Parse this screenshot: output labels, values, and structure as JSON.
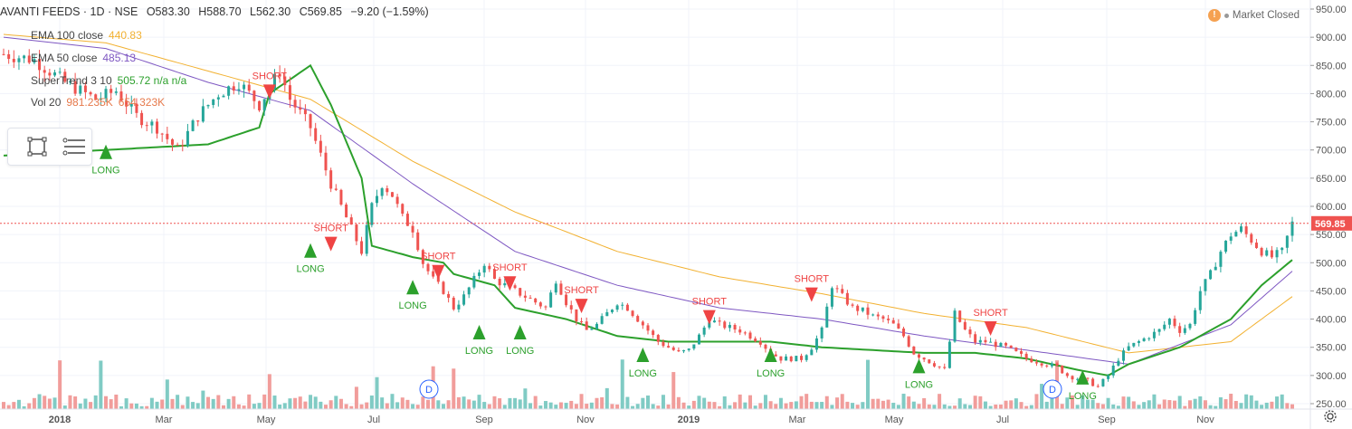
{
  "header": {
    "symbol": "AVANTI FEEDS · 1D · NSE",
    "open": "O583.30",
    "high": "H588.70",
    "low": "L562.30",
    "close": "C569.85",
    "change": "−9.20 (−1.59%)"
  },
  "indicators": {
    "ema100": {
      "label": "EMA 100 close",
      "value": "440.83",
      "color": "#f2b131"
    },
    "ema50": {
      "label": "EMA 50 close",
      "value": "485.13",
      "color": "#7e57c2"
    },
    "supertrend": {
      "label": "SuperTrend 3 10",
      "value": "505.72 n/a n/a",
      "color": "#2ca02c"
    },
    "volume": {
      "label": "Vol 20",
      "value1": "981.235K",
      "value2": "654.323K",
      "color": "#e6794b"
    }
  },
  "market_status": "Market Closed",
  "price_label": "569.85",
  "chart_data": {
    "type": "candlestick",
    "symbol": "AVANTI FEEDS",
    "interval": "1D",
    "exchange": "NSE",
    "ylim": [
      240,
      950
    ],
    "y_ticks": [
      "950.00",
      "900.00",
      "850.00",
      "800.00",
      "750.00",
      "700.00",
      "650.00",
      "600.00",
      "550.00",
      "500.00",
      "450.00",
      "400.00",
      "350.00",
      "300.00",
      "250.00"
    ],
    "x_ticks": [
      "2018",
      "Mar",
      "May",
      "Jul",
      "Sep",
      "Nov",
      "2019",
      "Mar",
      "May",
      "Jul",
      "Sep",
      "Nov"
    ],
    "last_price": 569.85,
    "price_path": [
      [
        0,
        870
      ],
      [
        6,
        860
      ],
      [
        12,
        820
      ],
      [
        18,
        790
      ],
      [
        22,
        805
      ],
      [
        26,
        760
      ],
      [
        30,
        740
      ],
      [
        34,
        700
      ],
      [
        38,
        760
      ],
      [
        42,
        800
      ],
      [
        46,
        820
      ],
      [
        50,
        780
      ],
      [
        54,
        840
      ],
      [
        56,
        790
      ],
      [
        60,
        740
      ],
      [
        62,
        690
      ],
      [
        64,
        640
      ],
      [
        66,
        600
      ],
      [
        68,
        560
      ],
      [
        70,
        520
      ],
      [
        72,
        600
      ],
      [
        74,
        640
      ],
      [
        76,
        620
      ],
      [
        78,
        580
      ],
      [
        80,
        560
      ],
      [
        82,
        500
      ],
      [
        84,
        470
      ],
      [
        86,
        450
      ],
      [
        88,
        420
      ],
      [
        90,
        440
      ],
      [
        92,
        470
      ],
      [
        94,
        500
      ],
      [
        96,
        470
      ],
      [
        98,
        460
      ],
      [
        100,
        450
      ],
      [
        102,
        440
      ],
      [
        104,
        430
      ],
      [
        106,
        420
      ],
      [
        108,
        470
      ],
      [
        110,
        430
      ],
      [
        112,
        400
      ],
      [
        114,
        380
      ],
      [
        116,
        390
      ],
      [
        118,
        410
      ],
      [
        120,
        430
      ],
      [
        122,
        420
      ],
      [
        124,
        400
      ],
      [
        126,
        380
      ],
      [
        128,
        360
      ],
      [
        130,
        350
      ],
      [
        132,
        340
      ],
      [
        134,
        345
      ],
      [
        136,
        370
      ],
      [
        138,
        400
      ],
      [
        140,
        390
      ],
      [
        142,
        385
      ],
      [
        144,
        380
      ],
      [
        146,
        370
      ],
      [
        148,
        360
      ],
      [
        150,
        340
      ],
      [
        152,
        330
      ],
      [
        154,
        330
      ],
      [
        156,
        330
      ],
      [
        158,
        350
      ],
      [
        160,
        380
      ],
      [
        162,
        460
      ],
      [
        164,
        440
      ],
      [
        166,
        420
      ],
      [
        168,
        415
      ],
      [
        170,
        405
      ],
      [
        172,
        400
      ],
      [
        174,
        390
      ],
      [
        176,
        370
      ],
      [
        178,
        340
      ],
      [
        180,
        330
      ],
      [
        182,
        320
      ],
      [
        184,
        310
      ],
      [
        186,
        410
      ],
      [
        188,
        380
      ],
      [
        190,
        360
      ],
      [
        192,
        360
      ],
      [
        194,
        355
      ],
      [
        196,
        350
      ],
      [
        198,
        340
      ],
      [
        200,
        330
      ],
      [
        202,
        325
      ],
      [
        204,
        320
      ],
      [
        206,
        315
      ],
      [
        208,
        300
      ],
      [
        210,
        295
      ],
      [
        212,
        290
      ],
      [
        214,
        280
      ],
      [
        216,
        300
      ],
      [
        218,
        330
      ],
      [
        220,
        350
      ],
      [
        222,
        360
      ],
      [
        224,
        370
      ],
      [
        226,
        380
      ],
      [
        228,
        400
      ],
      [
        230,
        380
      ],
      [
        232,
        390
      ],
      [
        234,
        450
      ],
      [
        236,
        480
      ],
      [
        238,
        520
      ],
      [
        240,
        550
      ],
      [
        242,
        560
      ],
      [
        244,
        540
      ],
      [
        246,
        520
      ],
      [
        248,
        510
      ],
      [
        250,
        520
      ],
      [
        252,
        570
      ]
    ],
    "ema100": [
      [
        0,
        905
      ],
      [
        20,
        890
      ],
      [
        40,
        840
      ],
      [
        60,
        790
      ],
      [
        80,
        680
      ],
      [
        100,
        590
      ],
      [
        120,
        520
      ],
      [
        140,
        475
      ],
      [
        160,
        445
      ],
      [
        180,
        410
      ],
      [
        200,
        385
      ],
      [
        220,
        340
      ],
      [
        240,
        360
      ],
      [
        252,
        440
      ]
    ],
    "ema50": [
      [
        0,
        900
      ],
      [
        20,
        880
      ],
      [
        40,
        820
      ],
      [
        60,
        770
      ],
      [
        80,
        640
      ],
      [
        100,
        520
      ],
      [
        120,
        460
      ],
      [
        140,
        420
      ],
      [
        160,
        400
      ],
      [
        180,
        370
      ],
      [
        200,
        345
      ],
      [
        220,
        320
      ],
      [
        240,
        390
      ],
      [
        252,
        485
      ]
    ],
    "supertrend": [
      [
        0,
        690
      ],
      [
        20,
        700
      ],
      [
        40,
        710
      ],
      [
        50,
        740
      ],
      [
        52,
        800
      ],
      [
        60,
        850
      ],
      [
        64,
        780
      ],
      [
        70,
        650
      ],
      [
        72,
        530
      ],
      [
        80,
        510
      ],
      [
        86,
        500
      ],
      [
        88,
        480
      ],
      [
        96,
        460
      ],
      [
        100,
        420
      ],
      [
        110,
        400
      ],
      [
        120,
        370
      ],
      [
        130,
        360
      ],
      [
        150,
        360
      ],
      [
        160,
        350
      ],
      [
        170,
        345
      ],
      [
        180,
        340
      ],
      [
        190,
        340
      ],
      [
        200,
        330
      ],
      [
        210,
        310
      ],
      [
        216,
        300
      ],
      [
        220,
        320
      ],
      [
        230,
        350
      ],
      [
        240,
        400
      ],
      [
        246,
        460
      ],
      [
        252,
        505
      ]
    ],
    "signals": [
      {
        "type": "LONG",
        "index": 20,
        "price": 700
      },
      {
        "type": "SHORT",
        "index": 52,
        "price": 800
      },
      {
        "type": "LONG",
        "index": 60,
        "price": 525
      },
      {
        "type": "SHORT",
        "index": 64,
        "price": 530
      },
      {
        "type": "LONG",
        "index": 80,
        "price": 460
      },
      {
        "type": "SHORT",
        "index": 85,
        "price": 480
      },
      {
        "type": "LONG",
        "index": 93,
        "price": 380
      },
      {
        "type": "SHORT",
        "index": 99,
        "price": 460
      },
      {
        "type": "LONG",
        "index": 101,
        "price": 380
      },
      {
        "type": "SHORT",
        "index": 113,
        "price": 420
      },
      {
        "type": "LONG",
        "index": 125,
        "price": 340
      },
      {
        "type": "SHORT",
        "index": 138,
        "price": 400
      },
      {
        "type": "LONG",
        "index": 150,
        "price": 340
      },
      {
        "type": "SHORT",
        "index": 158,
        "price": 440
      },
      {
        "type": "LONG",
        "index": 179,
        "price": 320
      },
      {
        "type": "SHORT",
        "index": 193,
        "price": 380
      },
      {
        "type": "LONG",
        "index": 211,
        "price": 300
      }
    ],
    "events": [
      "D",
      "D"
    ]
  },
  "colors": {
    "up": "#26a69a",
    "down": "#ef5350",
    "vol_up": "#80cbc4",
    "vol_down": "#f19d9b",
    "long": "#2ca02c",
    "short": "#ef4444",
    "axis_text": "#555555",
    "grid": "#f0f3fa"
  }
}
